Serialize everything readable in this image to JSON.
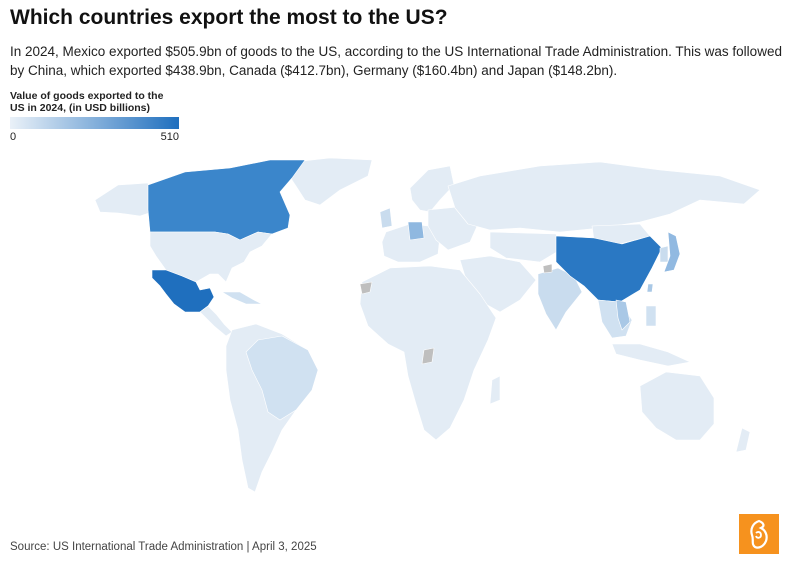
{
  "header": {
    "title": "Which countries export the most to the US?",
    "subtitle": "In 2024, Mexico exported $505.9bn of goods to the US, according to the US International Trade Administration. This was followed by China, which exported $438.9bn, Canada ($412.7bn), Germany ($160.4bn) and Japan ($148.2bn)."
  },
  "legend": {
    "title": "Value of goods exported to the US in 2024, (in USD billions)",
    "min_label": "0",
    "max_label": "510",
    "min_value": 0,
    "max_value": 510,
    "low_color": "#eaf1f8",
    "high_color": "#1f6fbe"
  },
  "chart_data": {
    "type": "choropleth",
    "title": "Which countries export the most to the US?",
    "value_label": "Value of goods exported to the US in 2024, (in USD billions)",
    "scale": [
      0,
      510
    ],
    "values": [
      {
        "country": "Mexico",
        "value": 505.9
      },
      {
        "country": "China",
        "value": 438.9
      },
      {
        "country": "Canada",
        "value": 412.7
      },
      {
        "country": "Germany",
        "value": 160.4
      },
      {
        "country": "Japan",
        "value": 148.2
      }
    ]
  },
  "map_colors": {
    "base": "#e3ecf5",
    "mid": "#d0e1f1",
    "light": "#c9dcee",
    "vietnam": "#a9c8e6",
    "germany": "#8fb8e0",
    "japan": "#91b9e1",
    "canada": "#3b86cb",
    "china": "#2a78c3",
    "mexico": "#1f6fbe",
    "nodata": "#bfbfbf",
    "border": "#ffffff"
  },
  "footer": {
    "source": "Source: US International Trade Administration | April 3, 2025"
  },
  "logo": {
    "icon": "al-jazeera-logo-icon",
    "color": "#f6921e"
  }
}
